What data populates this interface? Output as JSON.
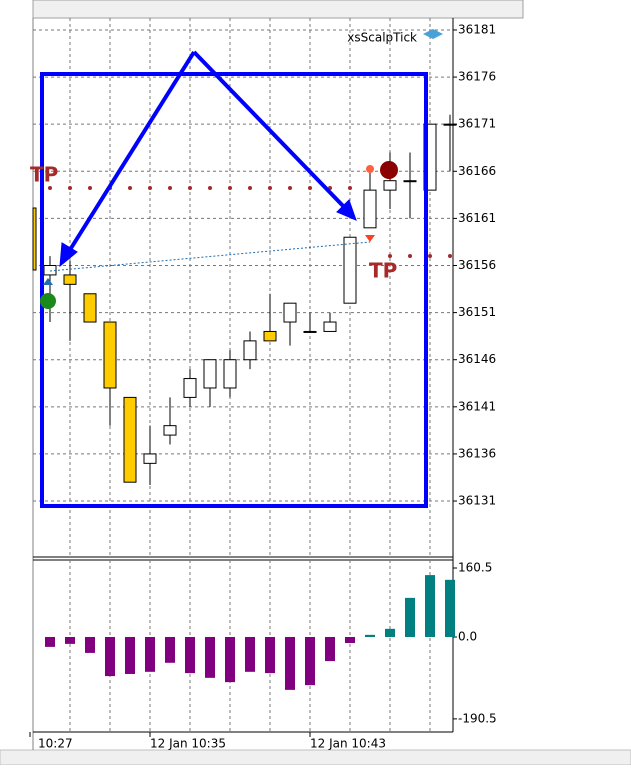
{
  "chart_data": [
    {
      "type": "candlestick",
      "title": "xsScalpTick",
      "annotations": [
        "TP",
        "TP"
      ],
      "open": [
        36155,
        36155,
        36153,
        36150,
        36142,
        36135,
        36138,
        36142,
        36143,
        36143,
        36146,
        36149,
        36150,
        36149,
        36149,
        36152,
        36160,
        36164,
        36165,
        36164,
        36171
      ],
      "close": [
        36156,
        36154,
        36150,
        36143,
        36133,
        36136,
        36139,
        36144,
        36146,
        36146,
        36148,
        36148,
        36152,
        36149,
        36150,
        36159,
        36164,
        36165,
        36165,
        36171,
        36171
      ],
      "high": [
        36157,
        36156.5,
        36153,
        36150,
        36142,
        36139,
        36142,
        36145,
        36146,
        36147,
        36149,
        36153,
        36152,
        36151,
        36151,
        36159,
        36166,
        36168,
        36168,
        36171,
        36172
      ],
      "low": [
        36150,
        36148,
        36150,
        36139,
        36133,
        36132.7,
        36137,
        36141,
        36141,
        36142,
        36145,
        36148,
        36147.5,
        36149,
        36149,
        36152,
        36160,
        36162,
        36161,
        36164,
        36166
      ],
      "up_color": "#ffffff",
      "down_color": "#ffcc00",
      "ylim": [
        36125.06,
        36182.27
      ],
      "yticks": [
        36131,
        36136,
        36141,
        36146,
        36151,
        36156,
        36161,
        36166,
        36171,
        36176,
        36181
      ],
      "grid": true
    },
    {
      "type": "bar",
      "values": [
        -23,
        -16,
        -37,
        -91,
        -86,
        -81,
        -60,
        -84,
        -95,
        -105,
        -81,
        -84,
        -123,
        -112,
        -56,
        -14,
        5,
        19,
        91,
        144,
        133
      ],
      "colors": {
        "positive": "#008080",
        "negative": "#800080"
      },
      "ylim": [
        -221,
        179.1
      ],
      "yticks": [
        160.5,
        {
          "value": 0,
          "label": "0.0"
        },
        -190.5
      ],
      "grid": true
    }
  ],
  "x_axis_labels": [
    "10:27",
    "12 Jan 10:35",
    "12 Jan 10:43"
  ]
}
